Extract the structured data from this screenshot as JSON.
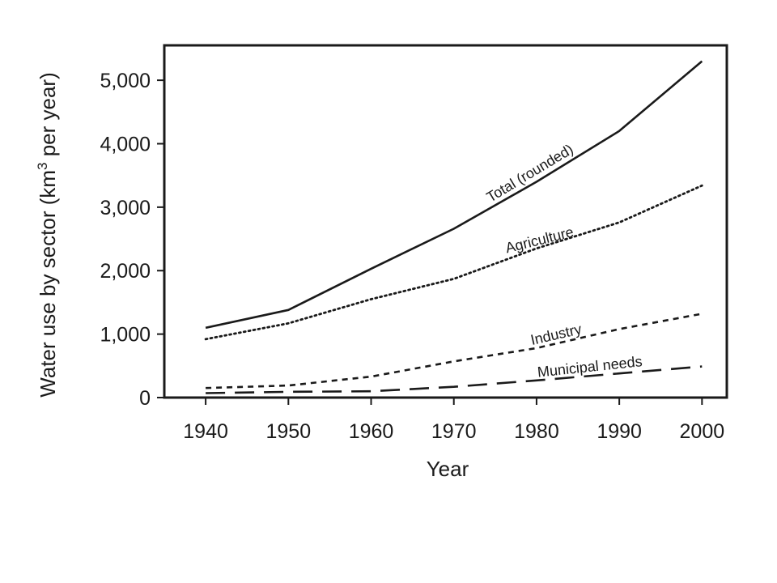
{
  "chart_data": {
    "type": "line",
    "title": "",
    "xlabel": "Year",
    "ylabel": {
      "before": "Water use by sector (km",
      "sup": "3",
      "after": " per year)"
    },
    "xlim": [
      1935,
      2003
    ],
    "ylim": [
      0,
      5550
    ],
    "x_ticks": [
      1940,
      1950,
      1960,
      1970,
      1980,
      1990,
      2000
    ],
    "y_ticks": [
      0,
      1000,
      2000,
      3000,
      4000,
      5000
    ],
    "y_tick_labels": [
      "0",
      "1,000",
      "2,000",
      "3,000",
      "4,000",
      "5,000"
    ],
    "x": [
      1940,
      1950,
      1960,
      1970,
      1980,
      1990,
      2000
    ],
    "series": [
      {
        "name": "Total (rounded)",
        "style": "solid",
        "values": [
          1100,
          1380,
          2030,
          2660,
          3400,
          4200,
          5300
        ],
        "label_pos": {
          "x": 1979.5,
          "y": 3470,
          "angle": -31
        }
      },
      {
        "name": "Agriculture",
        "style": "dotted",
        "values": [
          920,
          1170,
          1550,
          1870,
          2350,
          2760,
          3340
        ],
        "label_pos": {
          "x": 1980.5,
          "y": 2410,
          "angle": -14
        }
      },
      {
        "name": "Industry",
        "style": "dashed",
        "values": [
          150,
          190,
          330,
          570,
          780,
          1080,
          1320
        ],
        "label_pos": {
          "x": 1982.5,
          "y": 920,
          "angle": -13
        }
      },
      {
        "name": "Municipal needs",
        "style": "longdash",
        "values": [
          70,
          90,
          100,
          170,
          270,
          380,
          490
        ],
        "label_pos": {
          "x": 1986.5,
          "y": 410,
          "angle": -6
        }
      }
    ],
    "grid": false,
    "legend": "none (series labeled inline)"
  }
}
